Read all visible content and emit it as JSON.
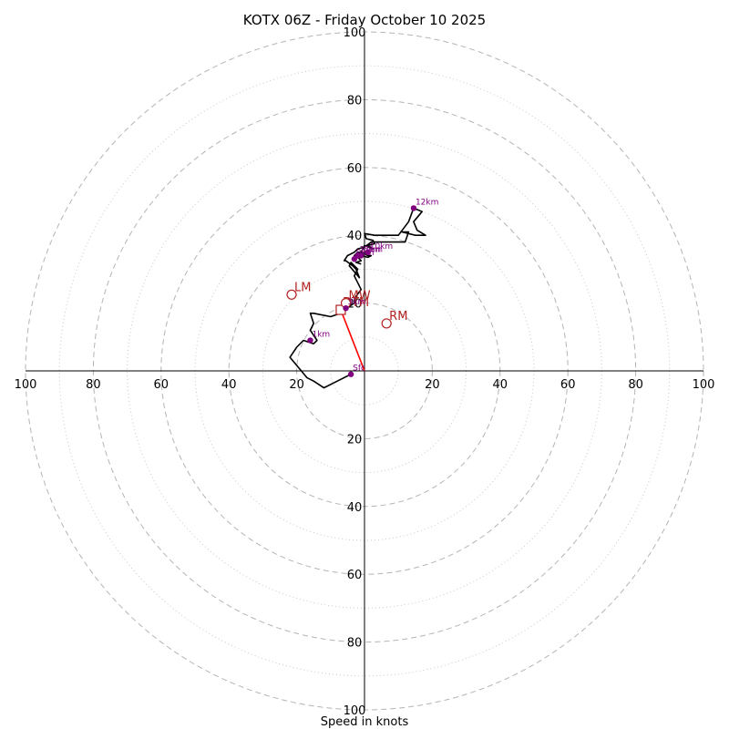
{
  "chart_data": {
    "type": "hodograph",
    "title": "KOTX 06Z - Friday October 10 2025",
    "xlabel": "Speed in knots",
    "range": [
      -100,
      100
    ],
    "rings_major": [
      20,
      40,
      60,
      80,
      100
    ],
    "rings_minor": [
      10,
      30,
      50,
      70,
      90
    ],
    "x_tick_labels": [
      "100",
      "80",
      "60",
      "40",
      "20",
      "20",
      "40",
      "60",
      "80",
      "100"
    ],
    "x_tick_values": [
      -100,
      -80,
      -60,
      -40,
      -20,
      20,
      40,
      60,
      80,
      100
    ],
    "y_tick_labels": [
      "100",
      "80",
      "60",
      "40",
      "20",
      "20",
      "40",
      "60",
      "80",
      "100"
    ],
    "y_tick_values": [
      100,
      80,
      60,
      40,
      20,
      -20,
      -40,
      -60,
      -80,
      -100
    ],
    "trace": [
      [
        -4,
        -1
      ],
      [
        -8,
        -3
      ],
      [
        -12,
        -5
      ],
      [
        -15,
        -3
      ],
      [
        -17,
        -2
      ],
      [
        -22,
        4
      ],
      [
        -20,
        7
      ],
      [
        -18,
        9
      ],
      [
        -15,
        8
      ],
      [
        -14,
        9
      ],
      [
        -16,
        12
      ],
      [
        -15,
        14
      ],
      [
        -16,
        17
      ],
      [
        -15,
        17
      ],
      [
        -10,
        16
      ],
      [
        -7,
        17
      ],
      [
        -5.5,
        18.5
      ],
      [
        -4.5,
        19
      ],
      [
        -3,
        20
      ],
      [
        -2.5,
        22
      ],
      [
        -1,
        24
      ],
      [
        -2,
        26
      ],
      [
        -3,
        28
      ],
      [
        -2,
        30
      ],
      [
        -4,
        32
      ],
      [
        -4.5,
        31
      ],
      [
        -1.5,
        27.5
      ],
      [
        -2.5,
        30
      ],
      [
        -3.5,
        31
      ],
      [
        -5.5,
        32.5
      ],
      [
        -6,
        32.5
      ],
      [
        -5,
        34
      ],
      [
        -3,
        35
      ],
      [
        -2,
        36
      ],
      [
        0,
        36.5
      ],
      [
        2,
        38
      ],
      [
        12,
        38
      ],
      [
        13,
        41
      ],
      [
        11,
        41
      ],
      [
        15,
        40
      ],
      [
        18,
        40
      ],
      [
        15.5,
        41.5
      ],
      [
        14.5,
        44
      ],
      [
        17,
        47
      ],
      [
        14.5,
        48
      ],
      [
        13,
        44
      ],
      [
        10,
        40
      ],
      [
        3,
        40
      ],
      [
        0,
        40.5
      ],
      [
        0.5,
        39
      ],
      [
        2.5,
        38.5
      ],
      [
        3,
        37.5
      ],
      [
        1,
        37
      ],
      [
        2.5,
        36
      ],
      [
        0,
        37
      ],
      [
        -1,
        35
      ],
      [
        -2,
        35
      ],
      [
        -3,
        34
      ],
      [
        -1,
        35
      ],
      [
        1,
        34
      ],
      [
        2,
        34
      ],
      [
        1,
        33.5
      ],
      [
        -1,
        34
      ],
      [
        -2,
        33.5
      ],
      [
        -1,
        32.5
      ],
      [
        -2.5,
        32
      ],
      [
        -1,
        31.5
      ]
    ],
    "height_markers": [
      {
        "label": "Sfc",
        "u": -4,
        "v": -1
      },
      {
        "label": "1km",
        "u": -16,
        "v": 9
      },
      {
        "label": "3km",
        "u": -5.5,
        "v": 18.5
      },
      {
        "label": "6km",
        "u": -1,
        "v": 34
      },
      {
        "label": "9km",
        "u": -3,
        "v": 33
      },
      {
        "label": "10km",
        "u": 1,
        "v": 35
      },
      {
        "label": "11km",
        "u": -2,
        "v": 34
      },
      {
        "label": "12km",
        "u": 14.5,
        "v": 48
      }
    ],
    "motion_markers": [
      {
        "label": "LM",
        "u": -21.5,
        "v": 22.5
      },
      {
        "label": "RM",
        "u": 6.5,
        "v": 14
      },
      {
        "label": "MW",
        "u": -5.5,
        "v": 20
      }
    ],
    "deviant_motion": {
      "label": "DTM",
      "u": -7,
      "v": 18
    },
    "storm_motion_vector": {
      "from": [
        0,
        0
      ],
      "to": [
        -7,
        18
      ]
    }
  }
}
